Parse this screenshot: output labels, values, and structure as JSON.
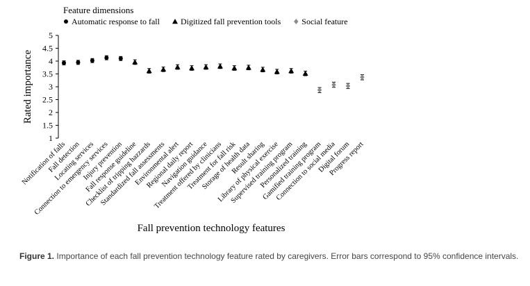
{
  "chart_data": {
    "type": "scatter",
    "legend_title": "Feature dimensions",
    "legend_position": "top-left",
    "xlabel": "Fall prevention technology features",
    "ylabel": "Rated importance",
    "ylim": [
      1,
      5
    ],
    "yticks": [
      "1",
      "1.5",
      "2",
      "2.5",
      "3",
      "3.5",
      "4",
      "4.5",
      "5"
    ],
    "grid": false,
    "error_bars": "95% confidence intervals",
    "series": [
      {
        "name": "Automatic response to fall",
        "marker": "circle",
        "color": "#000000",
        "points": [
          {
            "x": "Notification of falls",
            "y": 3.93,
            "err": 0.08
          },
          {
            "x": "Fall detection",
            "y": 3.95,
            "err": 0.08
          },
          {
            "x": "Locating services",
            "y": 4.02,
            "err": 0.08
          },
          {
            "x": "Connection to emergency services",
            "y": 4.13,
            "err": 0.08
          },
          {
            "x": "Injury prevention",
            "y": 4.1,
            "err": 0.08
          }
        ]
      },
      {
        "name": "Digitized fall prevention tools",
        "marker": "triangle",
        "color": "#000000",
        "points": [
          {
            "x": "Fall response guideline",
            "y": 3.96,
            "err": 0.09
          },
          {
            "x": "Checklist of tripping hazzards",
            "y": 3.62,
            "err": 0.09
          },
          {
            "x": "Standardized fall assessments",
            "y": 3.68,
            "err": 0.09
          },
          {
            "x": "Environmental alert",
            "y": 3.77,
            "err": 0.09
          },
          {
            "x": "Regional daily report",
            "y": 3.73,
            "err": 0.09
          },
          {
            "x": "Navigation guidance",
            "y": 3.77,
            "err": 0.09
          },
          {
            "x": "Treatment offered by clinicians",
            "y": 3.8,
            "err": 0.09
          },
          {
            "x": "Treatment for fall risk",
            "y": 3.73,
            "err": 0.09
          },
          {
            "x": "Storage of health data",
            "y": 3.75,
            "err": 0.09
          },
          {
            "x": "Result sharing",
            "y": 3.67,
            "err": 0.09
          },
          {
            "x": "Library of physical exercise",
            "y": 3.59,
            "err": 0.09
          },
          {
            "x": "Supervised training program",
            "y": 3.62,
            "err": 0.09
          },
          {
            "x": "Personalized training",
            "y": 3.52,
            "err": 0.09
          }
        ]
      },
      {
        "name": "Social feature",
        "marker": "diamond",
        "color": "#8c8c8c",
        "points": [
          {
            "x": "Gamified training program",
            "y": 2.87,
            "err": 0.1
          },
          {
            "x": "Connection to social media",
            "y": 3.08,
            "err": 0.1
          },
          {
            "x": "Digital forum",
            "y": 3.03,
            "err": 0.1
          },
          {
            "x": "Progress report",
            "y": 3.37,
            "err": 0.1
          }
        ]
      }
    ]
  },
  "caption": {
    "label": "Figure 1.",
    "text": "Importance of each fall prevention technology feature rated by caregivers. Error bars correspond to 95% confidence intervals."
  }
}
